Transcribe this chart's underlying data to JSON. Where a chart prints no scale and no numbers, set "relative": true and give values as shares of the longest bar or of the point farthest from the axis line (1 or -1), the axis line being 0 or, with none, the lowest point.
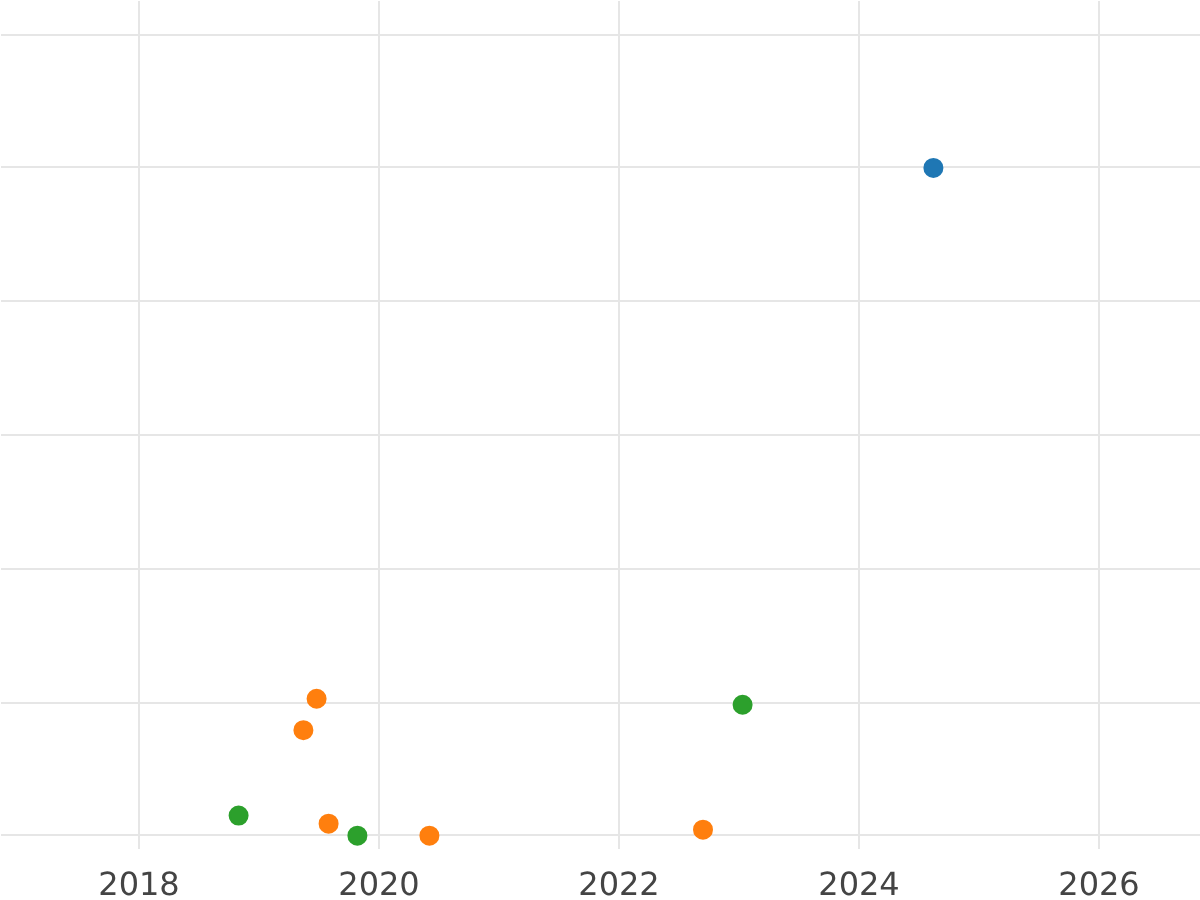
{
  "chart_data": {
    "type": "scatter",
    "relative": true,
    "xlim": [
      2016.85,
      2026.85
    ],
    "xticks": [
      2018,
      2020,
      2022,
      2024,
      2026
    ],
    "grid": true,
    "marker": "circle",
    "tick_labels": "x",
    "series": [
      {
        "color": "#1f77b4",
        "x": [
          2024.62
        ],
        "values": [
          1
        ]
      },
      {
        "color": "#ff7f0e",
        "x": [
          2019.37,
          2019.48,
          2019.58,
          2020.42,
          2022.7
        ],
        "values": [
          0.158,
          0.205,
          0.018,
          0,
          0.009
        ]
      },
      {
        "color": "#2ca02c",
        "x": [
          2018.83,
          2019.82,
          2023.03
        ],
        "values": [
          0.03,
          0,
          0.196
        ]
      }
    ]
  }
}
